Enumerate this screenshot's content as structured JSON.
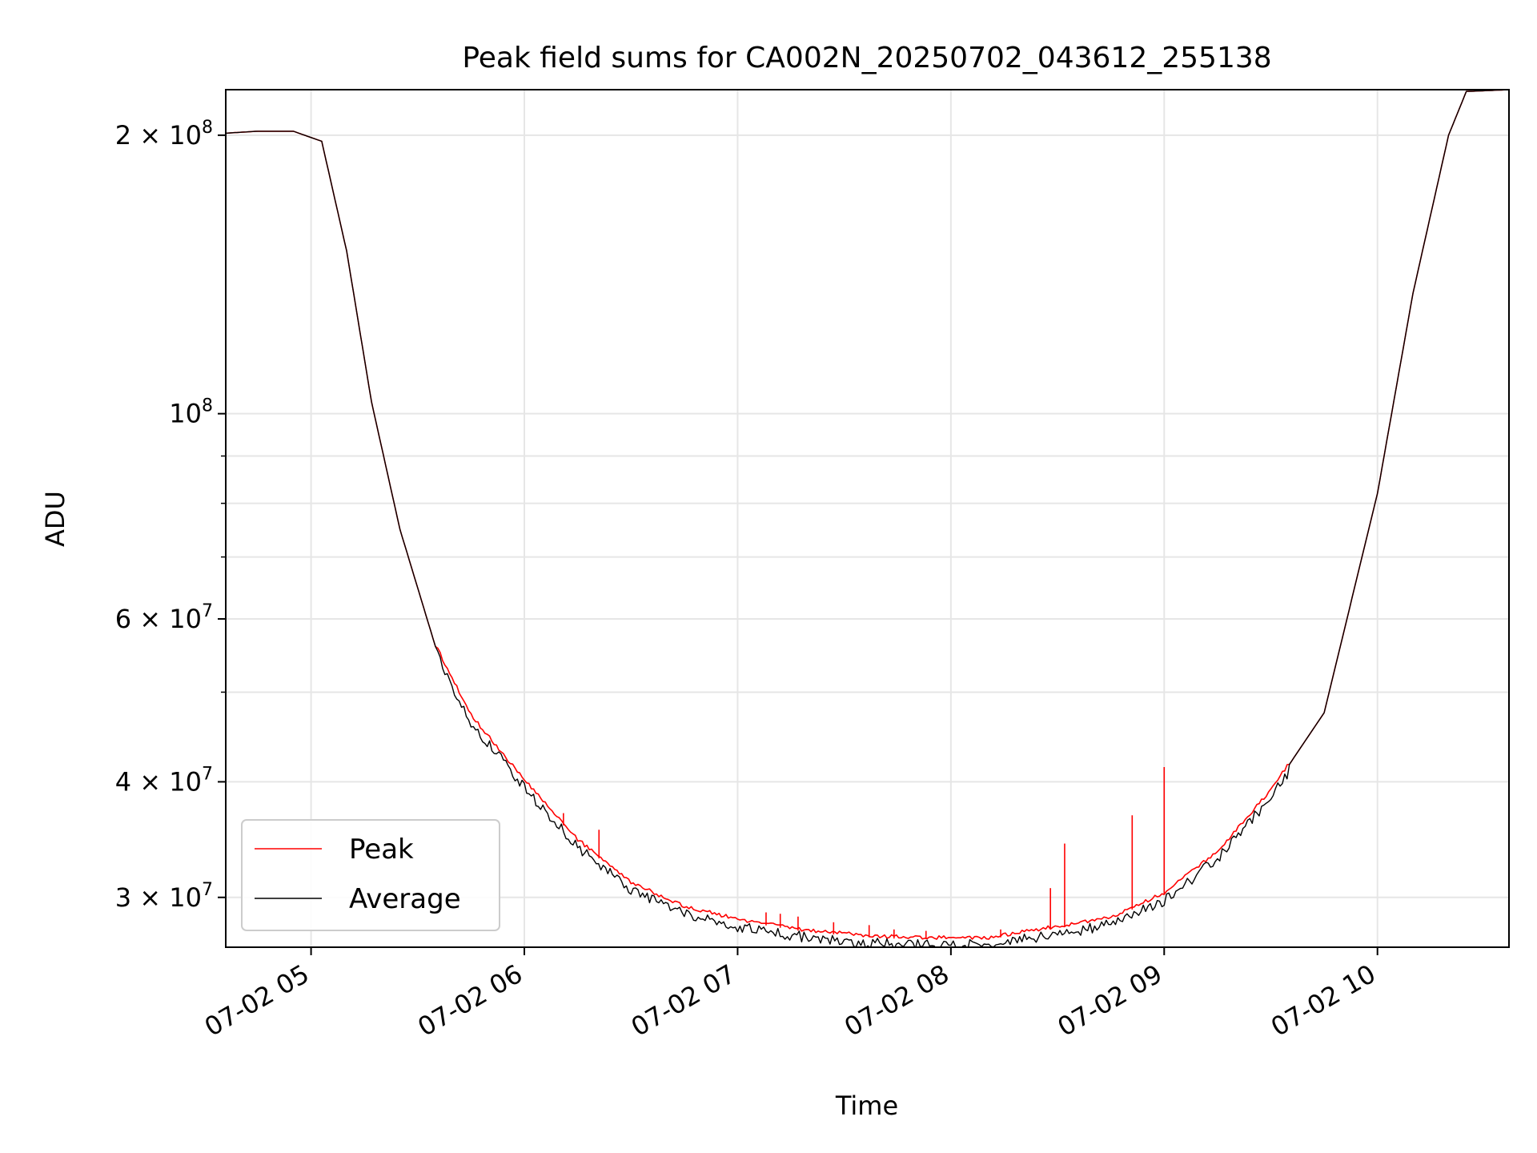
{
  "chart_data": {
    "type": "line",
    "title": "Peak field sums for CA002N_20250702_043612_255138",
    "xlabel": "Time",
    "ylabel": "ADU",
    "x_axis_kind": "datetime",
    "xlim": [
      "2025-07-02 04:36",
      "2025-07-02 10:37"
    ],
    "ylim": [
      26500000,
      224000000
    ],
    "yscale": "log",
    "grid": true,
    "legend_position": "lower-left",
    "x_ticks": [
      {
        "value": "2025-07-02 05:00",
        "label": "07-02 05"
      },
      {
        "value": "2025-07-02 06:00",
        "label": "07-02 06"
      },
      {
        "value": "2025-07-02 07:00",
        "label": "07-02 07"
      },
      {
        "value": "2025-07-02 08:00",
        "label": "07-02 08"
      },
      {
        "value": "2025-07-02 09:00",
        "label": "07-02 09"
      },
      {
        "value": "2025-07-02 10:00",
        "label": "07-02 10"
      }
    ],
    "y_ticks": [
      {
        "value": 30000000,
        "mantissa": "3",
        "exponent": "7"
      },
      {
        "value": 40000000,
        "mantissa": "4",
        "exponent": "7"
      },
      {
        "value": 60000000,
        "mantissa": "6",
        "exponent": "7"
      },
      {
        "value": 100000000,
        "mantissa": "",
        "exponent": "8"
      },
      {
        "value": 200000000,
        "mantissa": "2",
        "exponent": "8"
      }
    ],
    "y_minor_ticks": [
      50000000,
      70000000,
      80000000,
      90000000
    ],
    "series": [
      {
        "name": "Peak",
        "color": "#ff0000",
        "x": [
          "2025-07-02 04:36",
          "2025-07-02 04:45",
          "2025-07-02 04:55",
          "2025-07-02 05:03",
          "2025-07-02 05:10",
          "2025-07-02 05:17",
          "2025-07-02 05:25",
          "2025-07-02 05:35",
          "2025-07-02 05:45",
          "2025-07-02 06:00",
          "2025-07-02 06:15",
          "2025-07-02 06:30",
          "2025-07-02 06:45",
          "2025-07-02 07:00",
          "2025-07-02 07:20",
          "2025-07-02 07:40",
          "2025-07-02 08:00",
          "2025-07-02 08:10",
          "2025-07-02 08:30",
          "2025-07-02 08:45",
          "2025-07-02 09:00",
          "2025-07-02 09:15",
          "2025-07-02 09:30",
          "2025-07-02 09:45",
          "2025-07-02 10:00",
          "2025-07-02 10:10",
          "2025-07-02 10:20",
          "2025-07-02 10:25",
          "2025-07-02 10:37"
        ],
        "values": [
          201000000,
          202000000,
          202000000,
          197000000,
          150000000,
          103000000,
          75000000,
          56000000,
          47000000,
          40000000,
          34500000,
          31000000,
          29200000,
          28300000,
          27500000,
          27100000,
          27000000,
          27000000,
          27800000,
          28400000,
          30200000,
          33500000,
          39000000,
          47500000,
          82000000,
          135000000,
          200000000,
          223000000,
          224000000
        ],
        "spikes": [
          {
            "x": "2025-07-02 06:11",
            "value": 37000000
          },
          {
            "x": "2025-07-02 06:21",
            "value": 35500000
          },
          {
            "x": "2025-07-02 07:08",
            "value": 28900000
          },
          {
            "x": "2025-07-02 07:12",
            "value": 28800000
          },
          {
            "x": "2025-07-02 07:17",
            "value": 28600000
          },
          {
            "x": "2025-07-02 07:27",
            "value": 28200000
          },
          {
            "x": "2025-07-02 07:37",
            "value": 28000000
          },
          {
            "x": "2025-07-02 07:44",
            "value": 27700000
          },
          {
            "x": "2025-07-02 07:53",
            "value": 27600000
          },
          {
            "x": "2025-07-02 08:14",
            "value": 27700000
          },
          {
            "x": "2025-07-02 08:28",
            "value": 30700000
          },
          {
            "x": "2025-07-02 08:32",
            "value": 34300000
          },
          {
            "x": "2025-07-02 08:51",
            "value": 36800000
          },
          {
            "x": "2025-07-02 09:00",
            "value": 41500000
          }
        ]
      },
      {
        "name": "Average",
        "color": "#000000",
        "x": [
          "2025-07-02 04:36",
          "2025-07-02 04:45",
          "2025-07-02 04:55",
          "2025-07-02 05:03",
          "2025-07-02 05:10",
          "2025-07-02 05:17",
          "2025-07-02 05:25",
          "2025-07-02 05:35",
          "2025-07-02 05:45",
          "2025-07-02 06:00",
          "2025-07-02 06:15",
          "2025-07-02 06:30",
          "2025-07-02 06:45",
          "2025-07-02 07:00",
          "2025-07-02 07:20",
          "2025-07-02 07:40",
          "2025-07-02 08:00",
          "2025-07-02 08:10",
          "2025-07-02 08:30",
          "2025-07-02 08:45",
          "2025-07-02 09:00",
          "2025-07-02 09:15",
          "2025-07-02 09:30",
          "2025-07-02 09:45",
          "2025-07-02 10:00",
          "2025-07-02 10:10",
          "2025-07-02 10:20",
          "2025-07-02 10:25",
          "2025-07-02 10:37"
        ],
        "values": [
          201000000,
          202000000,
          202000000,
          197000000,
          150000000,
          103000000,
          75000000,
          56000000,
          47000000,
          40000000,
          34500000,
          31000000,
          29200000,
          28300000,
          27500000,
          27100000,
          27000000,
          27000000,
          27800000,
          28400000,
          30200000,
          33500000,
          39000000,
          47500000,
          82000000,
          135000000,
          200000000,
          223000000,
          224000000
        ]
      }
    ]
  }
}
